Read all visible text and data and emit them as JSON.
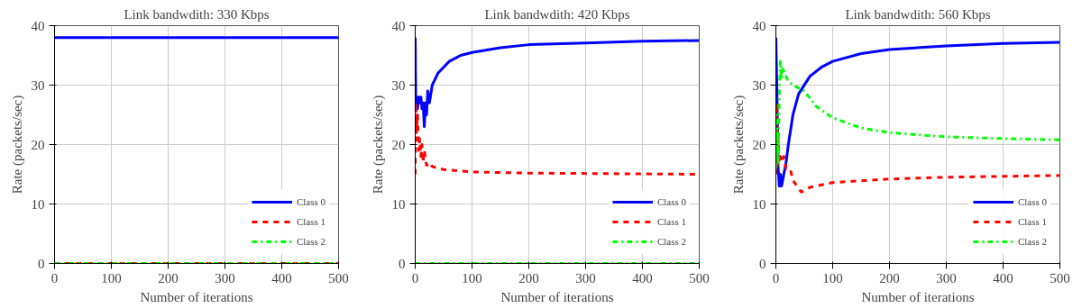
{
  "chart_data": [
    {
      "type": "line",
      "title": "Link bandwdith: 330 Kbps",
      "xlabel": "Number of iterations",
      "ylabel": "Rate (packets/sec)",
      "xlim": [
        0,
        500
      ],
      "ylim": [
        0,
        40
      ],
      "xticks": [
        0,
        100,
        200,
        300,
        400,
        500
      ],
      "yticks": [
        0,
        10,
        20,
        30,
        40
      ],
      "grid": true,
      "legend": "bottom right",
      "series": [
        {
          "name": "Class 0",
          "color": "#0000ff",
          "line_style": "solid",
          "x": [
            0,
            100,
            200,
            300,
            400,
            500
          ],
          "values": [
            38,
            38,
            38,
            38,
            38,
            38
          ]
        },
        {
          "name": "Class 1",
          "color": "#ff0000",
          "line_style": "dashed",
          "x": [
            0,
            100,
            200,
            300,
            400,
            500
          ],
          "values": [
            0,
            0,
            0,
            0,
            0,
            0
          ]
        },
        {
          "name": "Class 2",
          "color": "#00ff00",
          "line_style": "dashdot",
          "x": [
            0,
            100,
            200,
            300,
            400,
            500
          ],
          "values": [
            0,
            0,
            0,
            0,
            0,
            0
          ]
        }
      ]
    },
    {
      "type": "line",
      "title": "Link bandwdith: 420 Kbps",
      "xlabel": "Number of iterations",
      "ylabel": "Rate (packets/sec)",
      "xlim": [
        0,
        500
      ],
      "ylim": [
        0,
        40
      ],
      "xticks": [
        0,
        100,
        200,
        300,
        400,
        500
      ],
      "yticks": [
        0,
        10,
        20,
        30,
        40
      ],
      "grid": true,
      "legend": "bottom right",
      "series": [
        {
          "name": "Class 0",
          "color": "#0000ff",
          "line_style": "solid",
          "x": [
            0,
            1,
            2,
            4,
            6,
            8,
            10,
            12,
            14,
            16,
            18,
            20,
            22,
            25,
            30,
            40,
            60,
            80,
            100,
            150,
            200,
            300,
            400,
            500
          ],
          "values": [
            38,
            27,
            28,
            26,
            28,
            27,
            28,
            26,
            27,
            23,
            27,
            25,
            29,
            27,
            30,
            32,
            34,
            35,
            35.5,
            36.3,
            36.8,
            37.1,
            37.4,
            37.5
          ]
        },
        {
          "name": "Class 1",
          "color": "#ff0000",
          "line_style": "dashed",
          "x": [
            0,
            1,
            2,
            4,
            6,
            8,
            10,
            12,
            14,
            16,
            20,
            25,
            30,
            50,
            100,
            200,
            500
          ],
          "values": [
            15,
            27,
            22,
            25,
            19,
            21,
            18,
            20,
            17,
            19,
            16.5,
            17,
            16.3,
            15.8,
            15.4,
            15.2,
            15
          ]
        },
        {
          "name": "Class 2",
          "color": "#00ff00",
          "line_style": "dashdot",
          "x": [
            0,
            100,
            200,
            300,
            400,
            500
          ],
          "values": [
            0,
            0,
            0,
            0,
            0,
            0
          ]
        }
      ]
    },
    {
      "type": "line",
      "title": "Link bandwdith: 560 Kbps",
      "xlabel": "Number of iterations",
      "ylabel": "Rate (packets/sec)",
      "xlim": [
        0,
        500
      ],
      "ylim": [
        0,
        40
      ],
      "xticks": [
        0,
        100,
        200,
        300,
        400,
        500
      ],
      "yticks": [
        0,
        10,
        20,
        30,
        40
      ],
      "grid": true,
      "legend": "bottom right",
      "series": [
        {
          "name": "Class 0",
          "color": "#0000ff",
          "line_style": "solid",
          "x": [
            0,
            2,
            4,
            6,
            8,
            10,
            14,
            18,
            22,
            30,
            40,
            60,
            80,
            100,
            150,
            200,
            300,
            400,
            500
          ],
          "values": [
            38,
            28,
            16,
            13,
            15,
            13,
            15,
            17,
            20,
            25,
            28.5,
            31.5,
            33,
            34,
            35.3,
            36,
            36.6,
            37,
            37.2
          ]
        },
        {
          "name": "Class 1",
          "color": "#ff0000",
          "line_style": "dashed",
          "x": [
            0,
            1,
            2,
            3,
            4,
            6,
            8,
            10,
            14,
            18,
            25,
            30,
            45,
            60,
            100,
            200,
            300,
            500
          ],
          "values": [
            15,
            27,
            22,
            16,
            21,
            17,
            18,
            17,
            18,
            16,
            16,
            14,
            12,
            12.8,
            13.6,
            14.2,
            14.5,
            14.8
          ]
        },
        {
          "name": "Class 2",
          "color": "#00ff00",
          "line_style": "dashdot",
          "x": [
            0,
            1,
            2,
            3,
            4,
            6,
            8,
            10,
            12,
            16,
            20,
            30,
            50,
            70,
            100,
            150,
            200,
            300,
            400,
            500
          ],
          "values": [
            16,
            25,
            18,
            22,
            17,
            28,
            34,
            31,
            33,
            32,
            31,
            30,
            29,
            26.5,
            24.5,
            22.8,
            22,
            21.3,
            21,
            20.8
          ]
        }
      ]
    }
  ]
}
